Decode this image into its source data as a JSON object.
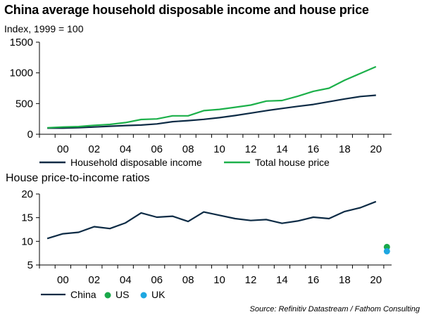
{
  "title": "China average household disposable income and house price",
  "source": "Source: Refinitiv Datastream / Fathom Consulting",
  "chart_data": [
    {
      "type": "line",
      "subtitle": "Index, 1999 = 100",
      "x_tick_labels": [
        "00",
        "02",
        "04",
        "06",
        "08",
        "10",
        "12",
        "14",
        "16",
        "18",
        "20"
      ],
      "x_tick_years": [
        2000,
        2002,
        2004,
        2006,
        2008,
        2010,
        2012,
        2014,
        2016,
        2018,
        2020
      ],
      "xlim": [
        1999,
        2021.5
      ],
      "ylim": [
        0,
        1500
      ],
      "y_ticks": [
        0,
        500,
        1000,
        1500
      ],
      "x": [
        1999.5,
        2000.5,
        2001.5,
        2002.5,
        2003.5,
        2004.5,
        2005.5,
        2006.5,
        2007.5,
        2008.5,
        2009.5,
        2010.5,
        2011.5,
        2012.5,
        2013.5,
        2014.5,
        2015.5,
        2016.5,
        2017.5,
        2018.5,
        2019.5,
        2020.5
      ],
      "series": [
        {
          "name": "Household disposable income",
          "color": "#0d2b45",
          "values": [
            100,
            100,
            108,
            118,
            130,
            142,
            150,
            168,
            205,
            222,
            243,
            270,
            305,
            345,
            385,
            420,
            455,
            485,
            530,
            575,
            615,
            635
          ]
        },
        {
          "name": "Total house price",
          "color": "#1cb04a",
          "values": [
            105,
            118,
            125,
            145,
            160,
            190,
            240,
            250,
            300,
            300,
            385,
            405,
            440,
            475,
            540,
            550,
            620,
            700,
            750,
            880,
            990,
            1100
          ]
        }
      ],
      "legend_position": "bottom"
    },
    {
      "type": "line",
      "title": "House price-to-income ratios",
      "x_tick_labels": [
        "00",
        "02",
        "04",
        "06",
        "08",
        "10",
        "12",
        "14",
        "16",
        "18",
        "20"
      ],
      "x_tick_years": [
        2000,
        2002,
        2004,
        2006,
        2008,
        2010,
        2012,
        2014,
        2016,
        2018,
        2020
      ],
      "xlim": [
        1999,
        2021.5
      ],
      "ylim": [
        5,
        20
      ],
      "y_ticks": [
        5,
        10,
        15,
        20
      ],
      "x": [
        1999.5,
        2000.5,
        2001.5,
        2002.5,
        2003.5,
        2004.5,
        2005.5,
        2006.5,
        2007.5,
        2008.5,
        2009.5,
        2010.5,
        2011.5,
        2012.5,
        2013.5,
        2014.5,
        2015.5,
        2016.5,
        2017.5,
        2018.5,
        2019.5,
        2020.5
      ],
      "series": [
        {
          "name": "China",
          "color": "#0d2b45",
          "values": [
            10.6,
            11.6,
            11.9,
            13.1,
            12.7,
            13.9,
            16.0,
            15.1,
            15.3,
            14.2,
            16.2,
            15.5,
            14.8,
            14.4,
            14.6,
            13.8,
            14.3,
            15.1,
            14.8,
            16.3,
            17.1,
            18.4
          ]
        }
      ],
      "points": [
        {
          "name": "US",
          "color": "#1aa84a",
          "x": 2021.2,
          "y": 8.8
        },
        {
          "name": "UK",
          "color": "#1ea7e1",
          "x": 2021.2,
          "y": 7.9
        }
      ],
      "legend_position": "bottom"
    }
  ]
}
